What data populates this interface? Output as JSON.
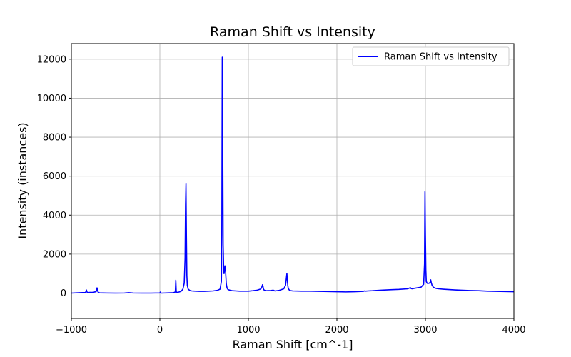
{
  "chart_data": {
    "type": "line",
    "title": "Raman Shift vs Intensity",
    "xlabel": "Raman Shift [cm^-1]",
    "ylabel": "Intensity (instances)",
    "xlim": [
      -1000,
      4000
    ],
    "ylim": [
      -1300,
      12800
    ],
    "grid": true,
    "legend_position": "top-right",
    "x_ticks": [
      -1000,
      0,
      1000,
      2000,
      3000,
      4000
    ],
    "x_tick_labels": [
      "−1000",
      "0",
      "1000",
      "2000",
      "3000",
      "4000"
    ],
    "y_ticks": [
      0,
      2000,
      4000,
      6000,
      8000,
      10000,
      12000
    ],
    "y_tick_labels": [
      "0",
      "2000",
      "4000",
      "6000",
      "8000",
      "10000",
      "12000"
    ],
    "series": [
      {
        "name": "Raman Shift vs Intensity",
        "color": "#0000ff",
        "x": [
          -1000,
          -900,
          -840,
          -830,
          -820,
          -810,
          -760,
          -720,
          -710,
          -700,
          -690,
          -680,
          -600,
          -500,
          -400,
          -350,
          -300,
          -200,
          -100,
          -50,
          0,
          5,
          10,
          15,
          20,
          50,
          100,
          150,
          170,
          175,
          180,
          185,
          190,
          200,
          220,
          240,
          260,
          275,
          285,
          290,
          295,
          300,
          305,
          310,
          320,
          340,
          360,
          400,
          450,
          500,
          550,
          600,
          650,
          680,
          695,
          700,
          705,
          710,
          715,
          720,
          725,
          730,
          735,
          740,
          745,
          750,
          755,
          760,
          770,
          790,
          820,
          860,
          900,
          950,
          1000,
          1050,
          1100,
          1140,
          1150,
          1160,
          1165,
          1170,
          1175,
          1185,
          1200,
          1250,
          1280,
          1290,
          1300,
          1350,
          1400,
          1420,
          1430,
          1435,
          1440,
          1445,
          1450,
          1460,
          1470,
          1500,
          1600,
          1700,
          1800,
          1900,
          2000,
          2100,
          2200,
          2300,
          2310,
          2320,
          2350,
          2400,
          2500,
          2600,
          2700,
          2800,
          2830,
          2840,
          2850,
          2880,
          2950,
          2980,
          2990,
          2995,
          3000,
          3005,
          3010,
          3020,
          3040,
          3055,
          3060,
          3065,
          3075,
          3090,
          3120,
          3150,
          3200,
          3300,
          3400,
          3500,
          3600,
          3700,
          3800,
          3900,
          4000
        ],
        "values": [
          0,
          20,
          30,
          160,
          20,
          30,
          40,
          70,
          270,
          60,
          30,
          10,
          5,
          0,
          5,
          20,
          5,
          0,
          0,
          5,
          5,
          50,
          5,
          0,
          0,
          5,
          10,
          20,
          40,
          100,
          660,
          80,
          40,
          40,
          60,
          90,
          200,
          500,
          1800,
          4500,
          5600,
          3000,
          900,
          400,
          200,
          130,
          110,
          100,
          90,
          90,
          100,
          110,
          140,
          200,
          600,
          3000,
          12100,
          8000,
          2500,
          1400,
          1000,
          1150,
          1400,
          1300,
          900,
          500,
          350,
          250,
          180,
          150,
          120,
          110,
          100,
          100,
          100,
          120,
          150,
          210,
          280,
          430,
          350,
          220,
          170,
          140,
          120,
          130,
          150,
          130,
          110,
          140,
          220,
          400,
          800,
          1000,
          700,
          400,
          250,
          170,
          130,
          110,
          100,
          100,
          90,
          80,
          70,
          60,
          70,
          90,
          110,
          100,
          110,
          120,
          150,
          170,
          190,
          220,
          280,
          230,
          220,
          250,
          300,
          450,
          1500,
          5200,
          3000,
          1200,
          600,
          500,
          500,
          560,
          680,
          560,
          400,
          300,
          240,
          220,
          200,
          170,
          150,
          130,
          120,
          100,
          90,
          80,
          70
        ]
      }
    ]
  }
}
